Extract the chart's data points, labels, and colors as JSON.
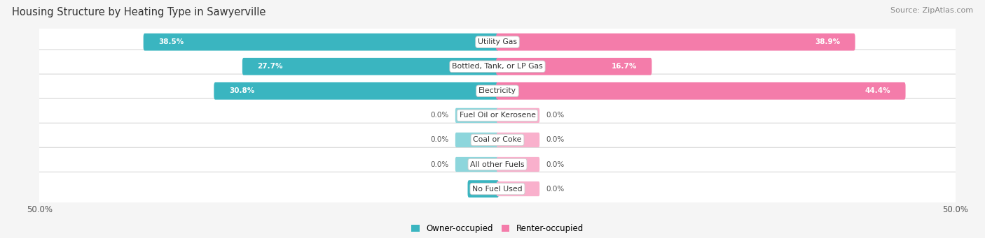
{
  "title": "Housing Structure by Heating Type in Sawyerville",
  "source": "Source: ZipAtlas.com",
  "categories": [
    "Utility Gas",
    "Bottled, Tank, or LP Gas",
    "Electricity",
    "Fuel Oil or Kerosene",
    "Coal or Coke",
    "All other Fuels",
    "No Fuel Used"
  ],
  "owner_values": [
    38.5,
    27.7,
    30.8,
    0.0,
    0.0,
    0.0,
    3.1
  ],
  "renter_values": [
    38.9,
    16.7,
    44.4,
    0.0,
    0.0,
    0.0,
    0.0
  ],
  "owner_color": "#3ab5c0",
  "renter_color": "#f47caa",
  "owner_stub_color": "#8dd6dc",
  "renter_stub_color": "#f9b0cc",
  "owner_label": "Owner-occupied",
  "renter_label": "Renter-occupied",
  "axis_limit": 50.0,
  "stub_size": 4.5,
  "background_color": "#f5f5f5",
  "row_bg_color": "#ffffff",
  "row_border_color": "#d8d8d8",
  "title_fontsize": 10.5,
  "source_fontsize": 8,
  "tick_fontsize": 8.5,
  "value_fontsize": 7.5,
  "category_fontsize": 7.8,
  "legend_fontsize": 8.5
}
